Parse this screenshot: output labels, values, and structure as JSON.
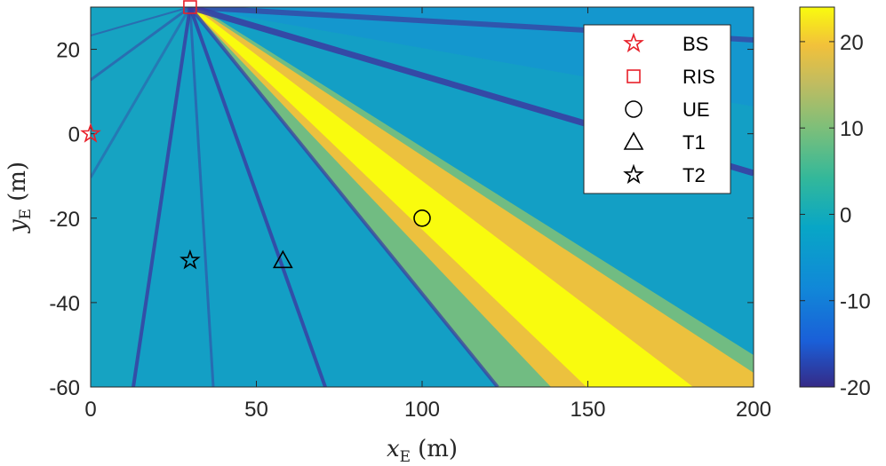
{
  "chart_data": {
    "type": "heatmap",
    "title": "",
    "xlabel": {
      "var": "x",
      "sub": "E",
      "unit": "(m)"
    },
    "ylabel": {
      "var": "y",
      "sub": "E",
      "unit": "(m)"
    },
    "xlim": [
      0,
      200
    ],
    "ylim": [
      -60,
      30
    ],
    "xticks": [
      0,
      50,
      100,
      150,
      200
    ],
    "yticks": [
      -60,
      -40,
      -20,
      0,
      20
    ],
    "colorbar": {
      "range": [
        -20,
        24
      ],
      "ticks": [
        -20,
        -10,
        0,
        10,
        20
      ],
      "colormap": "parula"
    },
    "points": [
      {
        "name": "BS",
        "x": 0,
        "y": 0,
        "marker": "star-open",
        "color": "#e8202a"
      },
      {
        "name": "RIS",
        "x": 30,
        "y": 30,
        "marker": "square-open",
        "color": "#e8202a"
      },
      {
        "name": "UE",
        "x": 100,
        "y": -20,
        "marker": "circle-open",
        "color": "#000000"
      },
      {
        "name": "T1",
        "x": 58,
        "y": -30,
        "marker": "triangle-open",
        "color": "#000000"
      },
      {
        "name": "T2",
        "x": 30,
        "y": -30,
        "marker": "star-open",
        "color": "#000000"
      }
    ],
    "legend": {
      "placement": "top-right",
      "entries": [
        "BS",
        "RIS",
        "UE",
        "T1",
        "T2"
      ]
    },
    "grid": false
  }
}
